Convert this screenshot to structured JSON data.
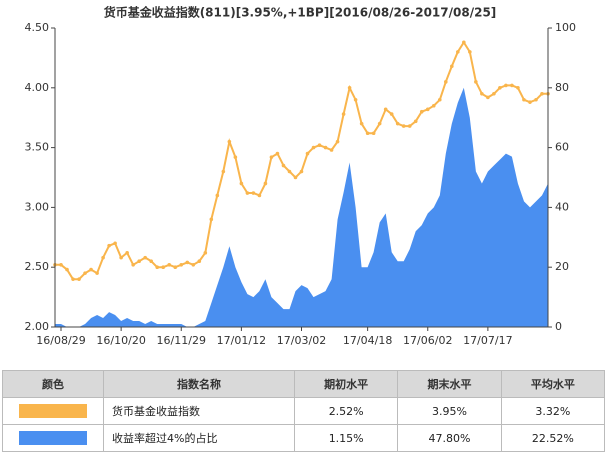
{
  "chart_data": {
    "type": "line-area",
    "title": "货币基金收益指数(811)[3.95%,+1BP][2016/08/26-2017/08/25]",
    "categories": [
      null,
      "16/08/29",
      null,
      null,
      null,
      null,
      null,
      null,
      null,
      null,
      null,
      "16/10/20",
      null,
      null,
      null,
      null,
      null,
      null,
      null,
      null,
      null,
      "16/11/29",
      null,
      null,
      null,
      null,
      null,
      null,
      null,
      null,
      null,
      "17/01/12",
      null,
      null,
      null,
      null,
      null,
      null,
      null,
      null,
      null,
      "17/03/02",
      null,
      null,
      null,
      null,
      null,
      null,
      null,
      null,
      null,
      null,
      "17/04/18",
      null,
      null,
      null,
      null,
      null,
      null,
      null,
      null,
      null,
      "17/06/02",
      null,
      null,
      null,
      null,
      null,
      null,
      null,
      null,
      null,
      "17/07/17",
      null,
      null,
      null,
      null,
      null,
      null,
      null,
      null,
      null,
      null
    ],
    "series": [
      {
        "name": "货币基金收益指数",
        "color": "#f9b54c",
        "axis": "y",
        "values": [
          2.52,
          2.52,
          2.48,
          2.4,
          2.4,
          2.45,
          2.48,
          2.45,
          2.58,
          2.68,
          2.7,
          2.58,
          2.62,
          2.52,
          2.55,
          2.58,
          2.55,
          2.5,
          2.5,
          2.52,
          2.5,
          2.52,
          2.54,
          2.52,
          2.55,
          2.62,
          2.9,
          3.1,
          3.3,
          3.55,
          3.42,
          3.2,
          3.12,
          3.12,
          3.1,
          3.2,
          3.42,
          3.45,
          3.35,
          3.3,
          3.25,
          3.3,
          3.45,
          3.5,
          3.52,
          3.5,
          3.48,
          3.55,
          3.78,
          4.0,
          3.9,
          3.7,
          3.62,
          3.62,
          3.7,
          3.82,
          3.78,
          3.7,
          3.68,
          3.68,
          3.72,
          3.8,
          3.82,
          3.85,
          3.9,
          4.05,
          4.18,
          4.3,
          4.38,
          4.3,
          4.05,
          3.95,
          3.92,
          3.95,
          4.0,
          4.02,
          4.02,
          4.0,
          3.9,
          3.88,
          3.9,
          3.95,
          3.95
        ]
      },
      {
        "name": "收益率超过4%的占比",
        "color": "#4a8ff0",
        "axis": "y2",
        "values": [
          1,
          1,
          0,
          0,
          0,
          1,
          3,
          4,
          3,
          5,
          4,
          2,
          3,
          2,
          2,
          1,
          2,
          1,
          1,
          1,
          1,
          1,
          0,
          0,
          1,
          2,
          8,
          14,
          20,
          27,
          20,
          15,
          11,
          10,
          12,
          16,
          10,
          8,
          6,
          6,
          12,
          14,
          13,
          10,
          11,
          12,
          16,
          36,
          45,
          55,
          40,
          20,
          20,
          25,
          35,
          38,
          25,
          22,
          22,
          26,
          32,
          34,
          38,
          40,
          44,
          58,
          68,
          75,
          80,
          70,
          52,
          48,
          52,
          54,
          56,
          58,
          57,
          48,
          42,
          40,
          42,
          44,
          48
        ]
      }
    ],
    "ylim": [
      2.0,
      4.5
    ],
    "yticks": [
      {
        "value": 2.0,
        "label": "2.00"
      },
      {
        "value": 2.5,
        "label": "2.50"
      },
      {
        "value": 3.0,
        "label": "3.00"
      },
      {
        "value": 3.5,
        "label": "3.50"
      },
      {
        "value": 4.0,
        "label": "4.00"
      },
      {
        "value": 4.5,
        "label": "4.50"
      }
    ],
    "y2lim": [
      0,
      100
    ],
    "y2ticks": [
      0,
      20,
      40,
      60,
      80,
      100
    ]
  },
  "table": {
    "header": [
      "颜色",
      "指数名称",
      "期初水平",
      "期末水平",
      "平均水平"
    ],
    "rows": [
      [
        "2.52%",
        "3.95%",
        "3.32%"
      ],
      [
        "1.15%",
        "47.80%",
        "22.52%"
      ]
    ]
  }
}
